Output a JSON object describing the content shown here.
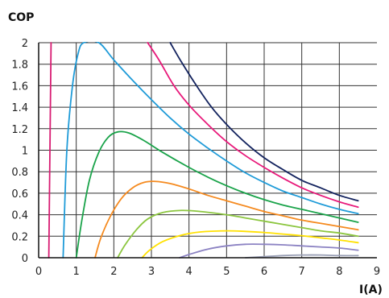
{
  "chart_data": {
    "type": "line",
    "title": "",
    "xlabel": "I(A)",
    "ylabel": "COP",
    "xlim": [
      0,
      9
    ],
    "ylim": [
      0,
      2
    ],
    "x_ticks": [
      "0",
      "1",
      "2",
      "3",
      "4",
      "5",
      "6",
      "7",
      "8",
      "9"
    ],
    "y_ticks": [
      "0",
      "0.2",
      "0.4",
      "0.6",
      "0.8",
      "1",
      "1.2",
      "1.4",
      "1.6",
      "1.8",
      "2"
    ],
    "grid": true,
    "legend": "none",
    "series": [
      {
        "color": "#d81b72",
        "points": [
          [
            0.27,
            0.0
          ],
          [
            0.3,
            1.0
          ],
          [
            0.33,
            2.0
          ]
        ]
      },
      {
        "color": "#1f9bd8",
        "points": [
          [
            0.65,
            0.0
          ],
          [
            0.75,
            1.0
          ],
          [
            0.9,
            1.6
          ],
          [
            1.05,
            1.9
          ],
          [
            1.2,
            2.0
          ],
          [
            1.6,
            2.0
          ],
          [
            2.0,
            1.84
          ],
          [
            2.5,
            1.65
          ],
          [
            3.0,
            1.47
          ],
          [
            3.5,
            1.3
          ],
          [
            4.0,
            1.15
          ],
          [
            4.5,
            1.02
          ],
          [
            5.0,
            0.9
          ],
          [
            5.5,
            0.79
          ],
          [
            6.0,
            0.7
          ],
          [
            6.5,
            0.62
          ],
          [
            7.0,
            0.56
          ],
          [
            7.5,
            0.5
          ],
          [
            8.0,
            0.45
          ],
          [
            8.5,
            0.41
          ]
        ]
      },
      {
        "color": "#e8197a",
        "points": [
          [
            2.9,
            2.0
          ],
          [
            3.2,
            1.84
          ],
          [
            3.6,
            1.6
          ],
          [
            4.0,
            1.42
          ],
          [
            4.5,
            1.24
          ],
          [
            5.0,
            1.08
          ],
          [
            5.5,
            0.95
          ],
          [
            6.0,
            0.84
          ],
          [
            6.5,
            0.74
          ],
          [
            7.0,
            0.65
          ],
          [
            7.5,
            0.58
          ],
          [
            8.0,
            0.52
          ],
          [
            8.5,
            0.47
          ]
        ]
      },
      {
        "color": "#13235e",
        "points": [
          [
            3.5,
            2.0
          ],
          [
            3.8,
            1.82
          ],
          [
            4.2,
            1.6
          ],
          [
            4.6,
            1.4
          ],
          [
            5.0,
            1.24
          ],
          [
            5.5,
            1.07
          ],
          [
            6.0,
            0.93
          ],
          [
            6.5,
            0.82
          ],
          [
            7.0,
            0.72
          ],
          [
            7.5,
            0.65
          ],
          [
            8.0,
            0.58
          ],
          [
            8.5,
            0.53
          ]
        ]
      },
      {
        "color": "#1aa34a",
        "points": [
          [
            1.0,
            0.0
          ],
          [
            1.15,
            0.35
          ],
          [
            1.35,
            0.72
          ],
          [
            1.6,
            0.98
          ],
          [
            1.85,
            1.12
          ],
          [
            2.1,
            1.17
          ],
          [
            2.4,
            1.16
          ],
          [
            2.8,
            1.09
          ],
          [
            3.3,
            0.98
          ],
          [
            4.0,
            0.84
          ],
          [
            4.5,
            0.75
          ],
          [
            5.0,
            0.67
          ],
          [
            5.5,
            0.6
          ],
          [
            6.0,
            0.54
          ],
          [
            6.5,
            0.49
          ],
          [
            7.0,
            0.45
          ],
          [
            7.5,
            0.41
          ],
          [
            8.0,
            0.37
          ],
          [
            8.5,
            0.33
          ]
        ]
      },
      {
        "color": "#f58a1f",
        "points": [
          [
            1.5,
            0.0
          ],
          [
            1.65,
            0.18
          ],
          [
            1.9,
            0.38
          ],
          [
            2.2,
            0.55
          ],
          [
            2.5,
            0.65
          ],
          [
            2.8,
            0.7
          ],
          [
            3.1,
            0.71
          ],
          [
            3.5,
            0.69
          ],
          [
            4.0,
            0.64
          ],
          [
            4.5,
            0.58
          ],
          [
            5.0,
            0.53
          ],
          [
            5.5,
            0.48
          ],
          [
            6.0,
            0.43
          ],
          [
            6.5,
            0.39
          ],
          [
            7.0,
            0.35
          ],
          [
            7.5,
            0.32
          ],
          [
            8.0,
            0.29
          ],
          [
            8.5,
            0.26
          ]
        ]
      },
      {
        "color": "#8cc63f",
        "points": [
          [
            2.1,
            0.0
          ],
          [
            2.3,
            0.12
          ],
          [
            2.6,
            0.26
          ],
          [
            2.9,
            0.36
          ],
          [
            3.3,
            0.42
          ],
          [
            3.8,
            0.44
          ],
          [
            4.3,
            0.43
          ],
          [
            5.0,
            0.4
          ],
          [
            5.5,
            0.37
          ],
          [
            6.0,
            0.34
          ],
          [
            6.5,
            0.31
          ],
          [
            7.0,
            0.28
          ],
          [
            7.5,
            0.25
          ],
          [
            8.0,
            0.23
          ],
          [
            8.5,
            0.2
          ]
        ]
      },
      {
        "color": "#ffe100",
        "points": [
          [
            2.75,
            0.0
          ],
          [
            2.95,
            0.07
          ],
          [
            3.3,
            0.15
          ],
          [
            3.8,
            0.21
          ],
          [
            4.3,
            0.24
          ],
          [
            5.0,
            0.25
          ],
          [
            5.5,
            0.245
          ],
          [
            6.0,
            0.235
          ],
          [
            6.5,
            0.22
          ],
          [
            7.0,
            0.205
          ],
          [
            7.5,
            0.185
          ],
          [
            8.0,
            0.165
          ],
          [
            8.5,
            0.14
          ]
        ]
      },
      {
        "color": "#8c83c3",
        "points": [
          [
            3.75,
            0.0
          ],
          [
            4.0,
            0.03
          ],
          [
            4.5,
            0.08
          ],
          [
            5.0,
            0.11
          ],
          [
            5.5,
            0.125
          ],
          [
            6.0,
            0.125
          ],
          [
            6.5,
            0.12
          ],
          [
            7.0,
            0.11
          ],
          [
            7.5,
            0.1
          ],
          [
            8.0,
            0.09
          ],
          [
            8.5,
            0.07
          ]
        ]
      },
      {
        "color": "#9aa0b6",
        "points": [
          [
            5.5,
            0.0
          ],
          [
            6.0,
            0.01
          ],
          [
            6.5,
            0.02
          ],
          [
            7.0,
            0.025
          ],
          [
            7.5,
            0.025
          ],
          [
            8.0,
            0.02
          ],
          [
            8.5,
            0.02
          ]
        ]
      }
    ]
  }
}
